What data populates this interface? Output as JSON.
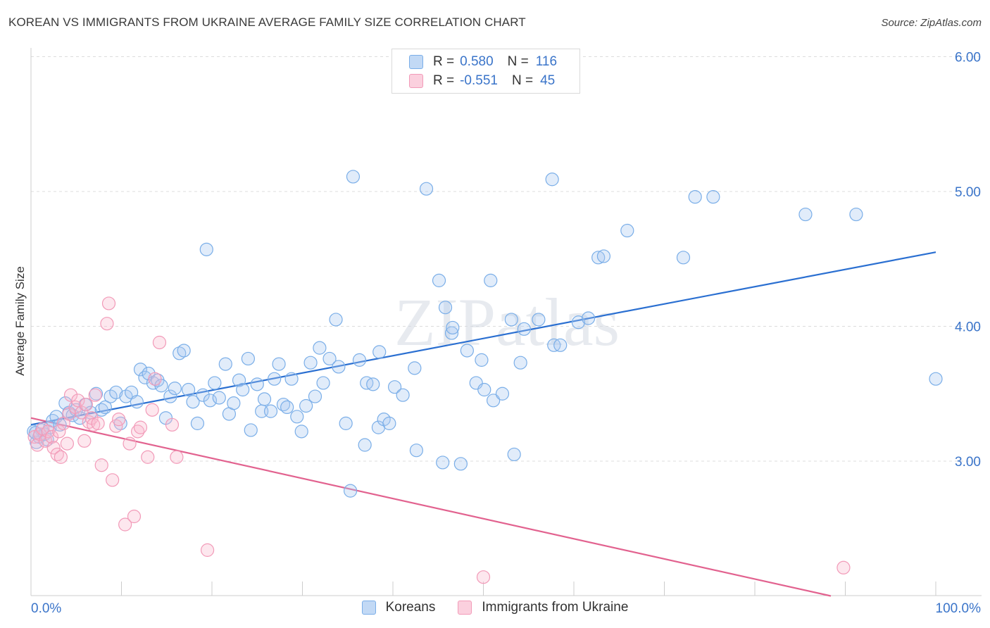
{
  "title": "KOREAN VS IMMIGRANTS FROM UKRAINE AVERAGE FAMILY SIZE CORRELATION CHART",
  "source": "Source: ZipAtlas.com",
  "watermark": "ZIPatlas",
  "legend": {
    "r_label": "R =",
    "n_label": "N =",
    "rows": [
      {
        "r": "0.580",
        "n": "116"
      },
      {
        "r": "-0.551",
        "n": "45"
      }
    ]
  },
  "chart_data": {
    "type": "scatter",
    "title": "KOREAN VS IMMIGRANTS FROM UKRAINE AVERAGE FAMILY SIZE CORRELATION CHART",
    "xlabel": "",
    "ylabel": "Average Family Size",
    "xlim": [
      0,
      100
    ],
    "ylim": [
      2.0,
      6.1
    ],
    "x_tick_labels": [
      "0.0%",
      "100.0%"
    ],
    "y_ticks": [
      3.0,
      4.0,
      5.0,
      6.0
    ],
    "y_tick_labels": [
      "3.00",
      "4.00",
      "5.00",
      "6.00"
    ],
    "grid": true,
    "legend_position": "top-center",
    "series": [
      {
        "name": "Koreans",
        "color": "#7aaee8",
        "trend": {
          "x0": 0,
          "y0": 3.27,
          "x1": 100,
          "y1": 4.55,
          "color": "#2a6fd1"
        },
        "points": [
          [
            0.3,
            3.22
          ],
          [
            0.6,
            3.14
          ],
          [
            0.9,
            3.18
          ],
          [
            1.2,
            3.23
          ],
          [
            1.5,
            3.2
          ],
          [
            1.8,
            3.16
          ],
          [
            2.1,
            3.25
          ],
          [
            2.4,
            3.3
          ],
          [
            2.8,
            3.33
          ],
          [
            3.2,
            3.27
          ],
          [
            3.8,
            3.43
          ],
          [
            4.2,
            3.36
          ],
          [
            4.6,
            3.34
          ],
          [
            5.0,
            3.38
          ],
          [
            5.4,
            3.32
          ],
          [
            6.0,
            3.42
          ],
          [
            6.6,
            3.36
          ],
          [
            7.2,
            3.5
          ],
          [
            7.8,
            3.38
          ],
          [
            8.2,
            3.4
          ],
          [
            8.8,
            3.48
          ],
          [
            9.4,
            3.51
          ],
          [
            9.9,
            3.28
          ],
          [
            10.5,
            3.48
          ],
          [
            11.1,
            3.51
          ],
          [
            11.7,
            3.44
          ],
          [
            12.1,
            3.68
          ],
          [
            12.6,
            3.62
          ],
          [
            13.0,
            3.65
          ],
          [
            13.5,
            3.58
          ],
          [
            14.0,
            3.6
          ],
          [
            14.4,
            3.56
          ],
          [
            14.9,
            3.32
          ],
          [
            15.4,
            3.48
          ],
          [
            15.9,
            3.54
          ],
          [
            16.4,
            3.8
          ],
          [
            16.9,
            3.82
          ],
          [
            17.4,
            3.53
          ],
          [
            17.9,
            3.44
          ],
          [
            18.4,
            3.28
          ],
          [
            19.0,
            3.49
          ],
          [
            19.4,
            4.57
          ],
          [
            19.8,
            3.45
          ],
          [
            20.3,
            3.58
          ],
          [
            20.8,
            3.47
          ],
          [
            21.5,
            3.72
          ],
          [
            21.9,
            3.35
          ],
          [
            22.4,
            3.43
          ],
          [
            23.0,
            3.6
          ],
          [
            23.4,
            3.53
          ],
          [
            24.0,
            3.76
          ],
          [
            24.3,
            3.23
          ],
          [
            25.0,
            3.57
          ],
          [
            25.5,
            3.37
          ],
          [
            25.8,
            3.46
          ],
          [
            26.5,
            3.37
          ],
          [
            26.9,
            3.61
          ],
          [
            27.4,
            3.72
          ],
          [
            27.9,
            3.42
          ],
          [
            28.3,
            3.4
          ],
          [
            28.8,
            3.61
          ],
          [
            29.4,
            3.33
          ],
          [
            29.9,
            3.22
          ],
          [
            30.4,
            3.41
          ],
          [
            30.9,
            3.73
          ],
          [
            31.4,
            3.48
          ],
          [
            31.9,
            3.84
          ],
          [
            32.3,
            3.58
          ],
          [
            33.0,
            3.76
          ],
          [
            33.7,
            4.05
          ],
          [
            34.0,
            3.7
          ],
          [
            34.8,
            3.28
          ],
          [
            35.3,
            2.78
          ],
          [
            35.6,
            5.11
          ],
          [
            36.3,
            3.75
          ],
          [
            36.9,
            3.12
          ],
          [
            37.1,
            3.58
          ],
          [
            37.8,
            3.57
          ],
          [
            38.5,
            3.81
          ],
          [
            38.4,
            3.25
          ],
          [
            39.0,
            3.31
          ],
          [
            39.6,
            3.28
          ],
          [
            40.2,
            3.55
          ],
          [
            41.1,
            3.49
          ],
          [
            42.4,
            3.69
          ],
          [
            42.6,
            3.08
          ],
          [
            43.7,
            5.02
          ],
          [
            45.1,
            4.34
          ],
          [
            45.5,
            2.99
          ],
          [
            45.8,
            4.14
          ],
          [
            46.5,
            3.95
          ],
          [
            46.6,
            3.99
          ],
          [
            47.5,
            2.98
          ],
          [
            48.2,
            3.82
          ],
          [
            49.2,
            3.58
          ],
          [
            49.8,
            3.75
          ],
          [
            50.1,
            3.53
          ],
          [
            50.8,
            4.34
          ],
          [
            51.1,
            3.45
          ],
          [
            52.1,
            3.5
          ],
          [
            53.1,
            4.05
          ],
          [
            53.4,
            3.05
          ],
          [
            54.1,
            3.73
          ],
          [
            54.5,
            3.98
          ],
          [
            56.1,
            4.05
          ],
          [
            57.6,
            5.09
          ],
          [
            57.8,
            3.86
          ],
          [
            58.5,
            3.86
          ],
          [
            60.5,
            4.03
          ],
          [
            61.6,
            4.06
          ],
          [
            62.7,
            4.51
          ],
          [
            63.3,
            4.52
          ],
          [
            65.9,
            4.71
          ],
          [
            72.1,
            4.51
          ],
          [
            73.4,
            4.96
          ],
          [
            75.4,
            4.96
          ],
          [
            85.6,
            4.83
          ],
          [
            91.2,
            4.83
          ],
          [
            100.0,
            3.61
          ],
          [
            0.5,
            3.21
          ]
        ]
      },
      {
        "name": "Immigrants from Ukraine",
        "color": "#f29ab8",
        "trend": {
          "x0": 0,
          "y0": 3.32,
          "x1": 88.4,
          "y1": 2.0,
          "color": "#e2628f"
        },
        "points": [
          [
            0.4,
            3.18
          ],
          [
            0.7,
            3.12
          ],
          [
            1.0,
            3.2
          ],
          [
            1.3,
            3.24
          ],
          [
            1.6,
            3.15
          ],
          [
            1.9,
            3.22
          ],
          [
            2.3,
            3.18
          ],
          [
            2.5,
            3.1
          ],
          [
            2.9,
            3.05
          ],
          [
            3.1,
            3.22
          ],
          [
            3.3,
            3.03
          ],
          [
            3.6,
            3.28
          ],
          [
            4.0,
            3.13
          ],
          [
            4.2,
            3.35
          ],
          [
            4.4,
            3.49
          ],
          [
            4.9,
            3.4
          ],
          [
            5.2,
            3.45
          ],
          [
            5.6,
            3.36
          ],
          [
            5.9,
            3.15
          ],
          [
            6.1,
            3.42
          ],
          [
            6.4,
            3.29
          ],
          [
            6.7,
            3.32
          ],
          [
            6.9,
            3.27
          ],
          [
            7.1,
            3.49
          ],
          [
            7.4,
            3.28
          ],
          [
            7.8,
            2.97
          ],
          [
            8.4,
            4.02
          ],
          [
            8.6,
            4.17
          ],
          [
            9.0,
            2.86
          ],
          [
            9.4,
            3.26
          ],
          [
            9.7,
            3.31
          ],
          [
            10.4,
            2.53
          ],
          [
            10.9,
            3.13
          ],
          [
            11.4,
            2.59
          ],
          [
            11.8,
            3.22
          ],
          [
            12.1,
            3.25
          ],
          [
            12.9,
            3.03
          ],
          [
            13.4,
            3.38
          ],
          [
            13.7,
            3.61
          ],
          [
            14.2,
            3.88
          ],
          [
            15.6,
            3.27
          ],
          [
            16.1,
            3.03
          ],
          [
            19.5,
            2.34
          ],
          [
            50.0,
            2.14
          ],
          [
            89.8,
            2.21
          ]
        ]
      }
    ]
  }
}
